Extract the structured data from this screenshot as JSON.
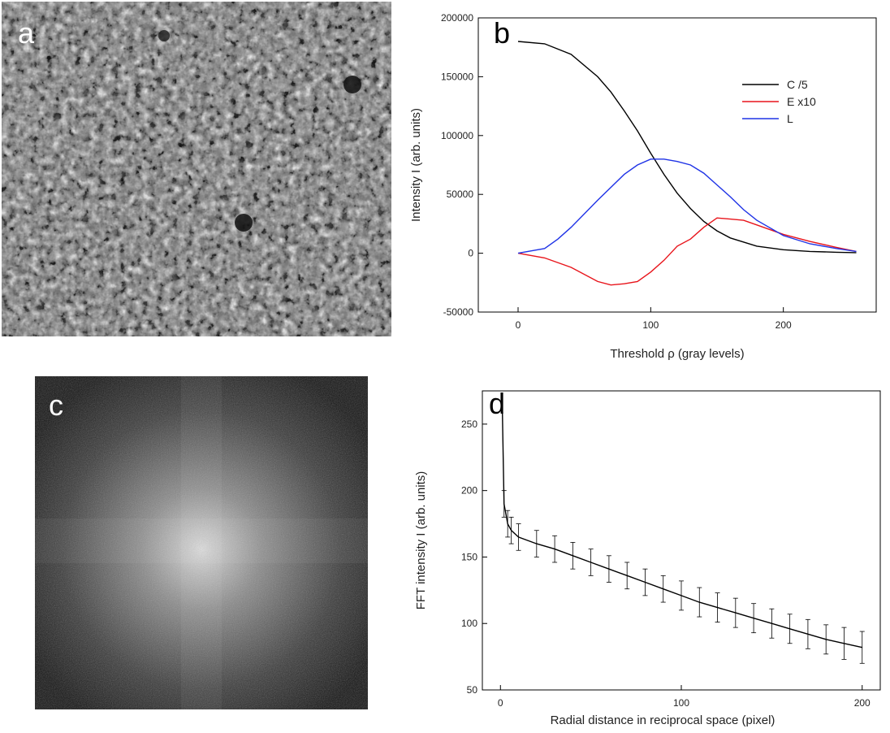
{
  "panels": {
    "a": {
      "letter": "a"
    },
    "b": {
      "letter": "b"
    },
    "c": {
      "letter": "c"
    },
    "d": {
      "letter": "d"
    }
  },
  "chart_data": [
    {
      "id": "b",
      "type": "line",
      "xlabel": "Threshold ρ (gray levels)",
      "ylabel": "Intensity I (arb. units)",
      "xlim": [
        -30,
        270
      ],
      "ylim": [
        -50000,
        200000
      ],
      "xticks": [
        0,
        100,
        200
      ],
      "yticks": [
        -50000,
        0,
        50000,
        100000,
        150000,
        200000
      ],
      "legend_position": "top-right",
      "grid": false,
      "series": [
        {
          "name": "C /5",
          "color": "#000000",
          "x": [
            0,
            20,
            40,
            60,
            70,
            80,
            90,
            100,
            110,
            120,
            130,
            140,
            150,
            160,
            180,
            200,
            220,
            240,
            255
          ],
          "y": [
            180000,
            178000,
            169000,
            150000,
            137000,
            121000,
            104000,
            85000,
            67000,
            51000,
            38000,
            27000,
            19000,
            13000,
            6000,
            3000,
            1500,
            800,
            500
          ]
        },
        {
          "name": "E x10",
          "color": "#e8141b",
          "x": [
            0,
            20,
            40,
            60,
            70,
            80,
            90,
            100,
            110,
            120,
            130,
            140,
            150,
            160,
            170,
            180,
            200,
            220,
            240,
            255
          ],
          "y": [
            0,
            -4000,
            -12000,
            -24000,
            -27000,
            -26000,
            -24000,
            -16000,
            -6000,
            6000,
            12000,
            22000,
            30000,
            29000,
            28000,
            24000,
            16000,
            10000,
            5000,
            1500
          ]
        },
        {
          "name": "L",
          "color": "#1f33e6",
          "x": [
            0,
            20,
            30,
            40,
            60,
            80,
            90,
            100,
            110,
            120,
            130,
            140,
            150,
            160,
            170,
            180,
            200,
            220,
            240,
            255
          ],
          "y": [
            0,
            4000,
            12000,
            22000,
            45000,
            67000,
            75000,
            80000,
            80000,
            78000,
            75000,
            68000,
            58000,
            48000,
            37000,
            28000,
            15000,
            8000,
            4000,
            1500
          ]
        }
      ]
    },
    {
      "id": "d",
      "type": "line",
      "xlabel": "Radial distance in reciprocal space  (pixel)",
      "ylabel": "FFT intensity I (arb. units)",
      "xlim": [
        -10,
        210
      ],
      "ylim": [
        50,
        275
      ],
      "xticks": [
        0,
        100,
        200
      ],
      "yticks": [
        50,
        100,
        150,
        200,
        250
      ],
      "grid": false,
      "series": [
        {
          "name": "",
          "color": "#000000",
          "x": [
            1,
            2,
            4,
            6,
            10,
            20,
            30,
            40,
            50,
            60,
            70,
            80,
            90,
            100,
            110,
            120,
            130,
            140,
            150,
            160,
            170,
            180,
            190,
            200
          ],
          "y": [
            265,
            190,
            175,
            170,
            165,
            160,
            156,
            151,
            146,
            141,
            136,
            131,
            126,
            121,
            116,
            112,
            108,
            104,
            100,
            96,
            92,
            88,
            85,
            82
          ],
          "err": [
            0,
            10,
            10,
            10,
            10,
            10,
            10,
            10,
            10,
            10,
            10,
            10,
            10,
            11,
            11,
            11,
            11,
            11,
            11,
            11,
            11,
            11,
            12,
            12
          ]
        }
      ]
    }
  ]
}
